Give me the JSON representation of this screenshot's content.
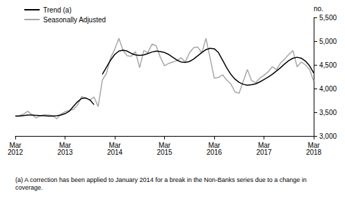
{
  "chart_data": {
    "type": "line",
    "categories": [
      "Mar 2012",
      null,
      null,
      null,
      null,
      null,
      null,
      null,
      null,
      null,
      null,
      null,
      "Mar 2013",
      null,
      null,
      null,
      null,
      null,
      null,
      null,
      null,
      null,
      null,
      null,
      "Mar 2014",
      null,
      null,
      null,
      null,
      null,
      null,
      null,
      null,
      null,
      null,
      null,
      "Mar 2015",
      null,
      null,
      null,
      null,
      null,
      null,
      null,
      null,
      null,
      null,
      null,
      "Mar 2016",
      null,
      null,
      null,
      null,
      null,
      null,
      null,
      null,
      null,
      null,
      null,
      "Mar 2017",
      null,
      null,
      null,
      null,
      null,
      null,
      null,
      null,
      null,
      null,
      null,
      "Mar 2018"
    ],
    "series": [
      {
        "name": "Trend (a)",
        "color": "#000000",
        "values": [
          3420,
          3420,
          3430,
          3440,
          3440,
          3435,
          3430,
          3425,
          3420,
          3420,
          3425,
          3440,
          3470,
          3520,
          3620,
          3720,
          3790,
          3800,
          3760,
          3660,
          null,
          4300,
          4450,
          4600,
          4720,
          4790,
          4810,
          4790,
          4740,
          4710,
          4700,
          4710,
          4740,
          4770,
          4790,
          4780,
          4760,
          4720,
          4660,
          4600,
          4560,
          4550,
          4570,
          4620,
          4690,
          4760,
          4820,
          4850,
          4840,
          4760,
          4600,
          4440,
          4300,
          4200,
          4130,
          4090,
          4070,
          4080,
          4100,
          4140,
          4190,
          4240,
          4300,
          4370,
          4440,
          4520,
          4590,
          4640,
          4660,
          4640,
          4580,
          4480,
          4330
        ]
      },
      {
        "name": "Seasonally Adjusted",
        "color": "#a6a6a6",
        "values": [
          3420,
          3430,
          3460,
          3520,
          3450,
          3380,
          3420,
          3450,
          3440,
          3430,
          3360,
          3460,
          3510,
          3540,
          3560,
          3650,
          3830,
          3800,
          3760,
          3820,
          3620,
          4180,
          4320,
          4650,
          4830,
          5060,
          4800,
          4690,
          4680,
          4780,
          4440,
          4800,
          4760,
          4940,
          4900,
          4660,
          4480,
          4530,
          4560,
          4590,
          4650,
          4560,
          4750,
          4860,
          4880,
          4750,
          5060,
          4650,
          4220,
          4230,
          4290,
          4180,
          4100,
          3930,
          3900,
          4150,
          4400,
          4170,
          4120,
          4220,
          4280,
          4350,
          4460,
          4400,
          4540,
          4620,
          4720,
          4800,
          4460,
          4560,
          4500,
          4400,
          4160
        ]
      }
    ],
    "ylim": [
      3000,
      5500
    ],
    "yticks": [
      3000,
      3500,
      4000,
      4500,
      5000,
      5500
    ],
    "y_label": "no.",
    "note": "(a) A correction has been applied to January 2014 for a break in the Non-Banks series due to a change in coverage.",
    "grid": false,
    "legend": "top-left"
  }
}
